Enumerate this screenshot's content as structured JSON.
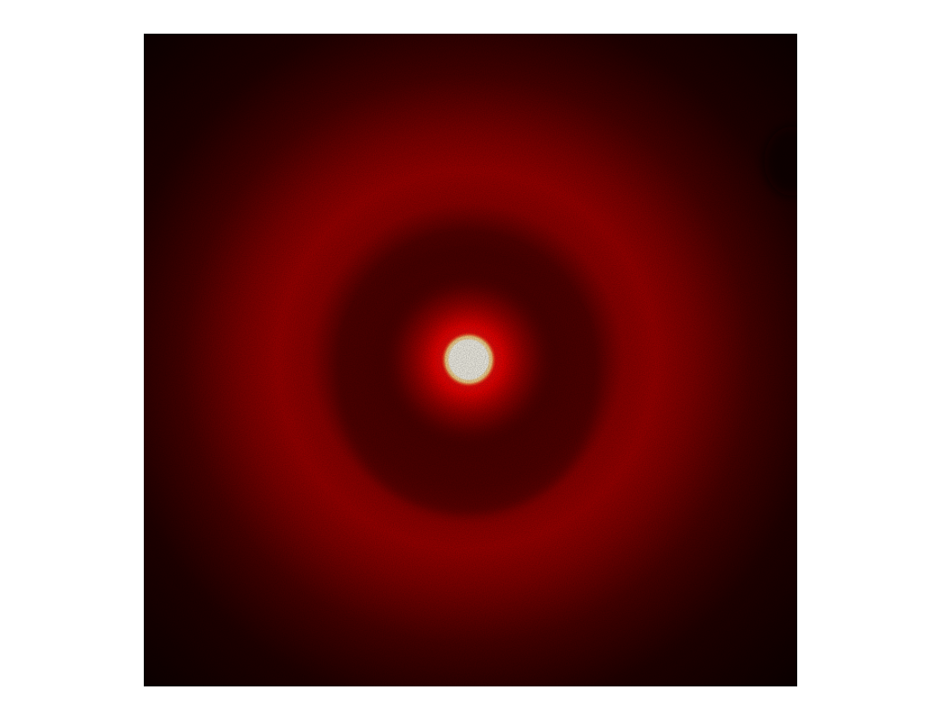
{
  "image": {
    "kind": "diffraction-ring-photo",
    "colors": {
      "background": "#ffffff",
      "dark_edge": "#120000",
      "ring_red": "#d80000",
      "dark_band": "#5a0000",
      "halo_red": "#ff1010",
      "core": "#fffbe6"
    }
  }
}
